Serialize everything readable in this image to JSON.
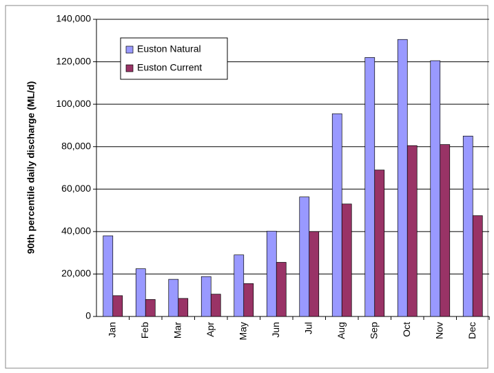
{
  "chart_data": {
    "type": "bar",
    "y_label": "90th percentile daily discharge (ML/d)",
    "categories": [
      "Jan",
      "Feb",
      "Mar",
      "Apr",
      "May",
      "Jun",
      "Jul",
      "Aug",
      "Sep",
      "Oct",
      "Nov",
      "Dec"
    ],
    "series": [
      {
        "name": "Euston Natural",
        "color": "#9999ff",
        "values": [
          38000,
          22500,
          17500,
          18800,
          29000,
          40200,
          56300,
          95500,
          122000,
          130500,
          120500,
          85000
        ]
      },
      {
        "name": "Euston Current",
        "color": "#993366",
        "values": [
          9800,
          8000,
          8500,
          10500,
          15500,
          25500,
          40000,
          53000,
          69000,
          80500,
          81000,
          47500
        ]
      }
    ],
    "ylim": [
      0,
      140000
    ],
    "yticks": [
      0,
      {
        "value": 20000,
        "label": "20,000"
      },
      {
        "value": 40000,
        "label": "40,000"
      },
      {
        "value": 60000,
        "label": "60,000"
      },
      {
        "value": 80000,
        "label": "80,000"
      },
      {
        "value": 100000,
        "label": "100,000"
      },
      {
        "value": 120000,
        "label": "120,000"
      },
      {
        "value": 140000,
        "label": "140,000"
      }
    ],
    "grid": true,
    "legend": "upper left"
  }
}
